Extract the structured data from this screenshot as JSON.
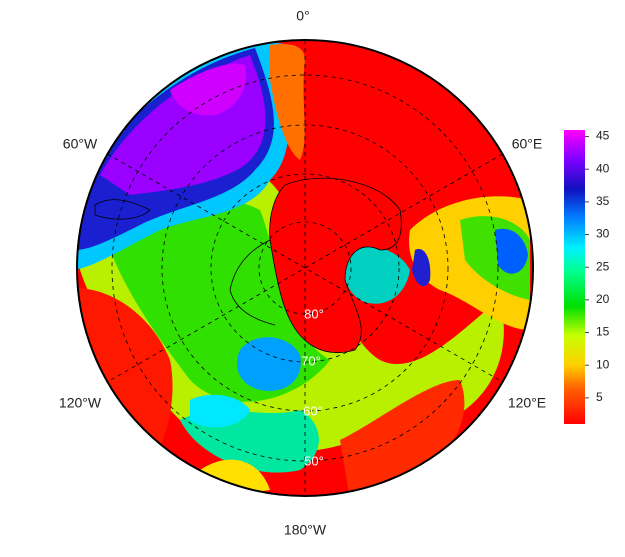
{
  "map": {
    "longitude_labels": [
      "0°",
      "60°E",
      "120°E",
      "180°W",
      "120°W",
      "60°W"
    ],
    "latitude_labels": [
      "80°",
      "70°",
      "60°",
      "50°"
    ],
    "colorbar": {
      "range": [
        1,
        46
      ],
      "ticks": [
        5,
        10,
        15,
        20,
        25,
        30,
        35,
        40,
        45
      ]
    }
  }
}
